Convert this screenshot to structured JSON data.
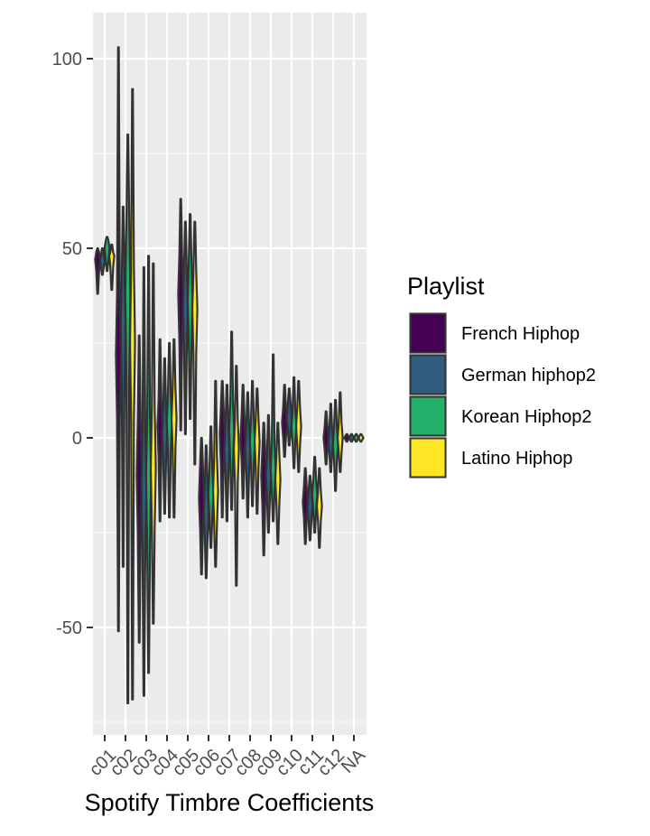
{
  "chart_data": {
    "type": "violin",
    "title": "",
    "xlabel": "Spotify Timbre Coefficients",
    "ylabel": "",
    "categories": [
      "c01",
      "c02",
      "c03",
      "c04",
      "c05",
      "c06",
      "c07",
      "c08",
      "c09",
      "c10",
      "c11",
      "c12",
      "NA"
    ],
    "y_ticks": [
      100,
      50,
      0,
      -50
    ],
    "y_tick_labels": [
      "100",
      "50",
      "0",
      "-50"
    ],
    "ylim": [
      -78,
      112
    ],
    "grid": true,
    "legend": {
      "title": "Playlist",
      "placement": "right"
    },
    "series": [
      {
        "name": "French Hiphop",
        "color": "#440154",
        "stats": [
          {
            "min": 38,
            "q1": 44,
            "median": 47,
            "q3": 49,
            "max": 50
          },
          {
            "min": -51,
            "q1": 5,
            "median": 22,
            "q3": 38,
            "max": 103
          },
          {
            "min": -54,
            "q1": -25,
            "median": -10,
            "q3": 5,
            "max": 27
          },
          {
            "min": -22,
            "q1": -5,
            "median": 3,
            "q3": 10,
            "max": 26
          },
          {
            "min": 2,
            "q1": 26,
            "median": 38,
            "q3": 48,
            "max": 63
          },
          {
            "min": -36,
            "q1": -24,
            "median": -16,
            "q3": -7,
            "max": 0
          },
          {
            "min": -21,
            "q1": -7,
            "median": 1,
            "q3": 8,
            "max": 15
          },
          {
            "min": -16,
            "q1": -6,
            "median": 0,
            "q3": 6,
            "max": 14
          },
          {
            "min": -31,
            "q1": -18,
            "median": -10,
            "q3": -3,
            "max": 4
          },
          {
            "min": -5,
            "q1": 0,
            "median": 4,
            "q3": 8,
            "max": 14
          },
          {
            "min": -28,
            "q1": -21,
            "median": -17,
            "q3": -13,
            "max": -8
          },
          {
            "min": -7,
            "q1": -3,
            "median": 0,
            "q3": 3,
            "max": 7
          },
          {
            "min": -1,
            "q1": -0.5,
            "median": 0,
            "q3": 0.5,
            "max": 1
          }
        ]
      },
      {
        "name": "German hiphop2",
        "color": "#2f5d7d",
        "stats": [
          {
            "min": 43,
            "q1": 45,
            "median": 47,
            "q3": 48,
            "max": 50
          },
          {
            "min": -34,
            "q1": 15,
            "median": 30,
            "q3": 42,
            "max": 61
          },
          {
            "min": -68,
            "q1": -30,
            "median": -14,
            "q3": 2,
            "max": 45
          },
          {
            "min": -20,
            "q1": -6,
            "median": 1,
            "q3": 8,
            "max": 21
          },
          {
            "min": 1,
            "q1": 24,
            "median": 34,
            "q3": 44,
            "max": 57
          },
          {
            "min": -37,
            "q1": -26,
            "median": -20,
            "q3": -12,
            "max": -2
          },
          {
            "min": -22,
            "q1": -10,
            "median": -3,
            "q3": 4,
            "max": 14
          },
          {
            "min": -21,
            "q1": -9,
            "median": -3,
            "q3": 3,
            "max": 12
          },
          {
            "min": -25,
            "q1": -16,
            "median": -10,
            "q3": -4,
            "max": 6
          },
          {
            "min": -2,
            "q1": 2,
            "median": 5,
            "q3": 9,
            "max": 13
          },
          {
            "min": -27,
            "q1": -22,
            "median": -18,
            "q3": -14,
            "max": -10
          },
          {
            "min": -9,
            "q1": -4,
            "median": -1,
            "q3": 2,
            "max": 9
          },
          {
            "min": -1,
            "q1": -0.5,
            "median": 0,
            "q3": 0.5,
            "max": 1
          }
        ]
      },
      {
        "name": "Korean Hiphop2",
        "color": "#22b06a",
        "stats": [
          {
            "min": 44,
            "q1": 47,
            "median": 50,
            "q3": 52,
            "max": 53
          },
          {
            "min": -70,
            "q1": 15,
            "median": 38,
            "q3": 58,
            "max": 80
          },
          {
            "min": -62,
            "q1": -28,
            "median": -10,
            "q3": 5,
            "max": 48
          },
          {
            "min": -21,
            "q1": -4,
            "median": 4,
            "q3": 12,
            "max": 25
          },
          {
            "min": 5,
            "q1": 26,
            "median": 36,
            "q3": 46,
            "max": 59
          },
          {
            "min": -29,
            "q1": -21,
            "median": -15,
            "q3": -8,
            "max": 3
          },
          {
            "min": -19,
            "q1": -6,
            "median": 2,
            "q3": 9,
            "max": 28
          },
          {
            "min": -18,
            "q1": -7,
            "median": -1,
            "q3": 5,
            "max": 15
          },
          {
            "min": -22,
            "q1": -14,
            "median": -8,
            "q3": -2,
            "max": 22
          },
          {
            "min": -8,
            "q1": -1,
            "median": 3,
            "q3": 7,
            "max": 16
          },
          {
            "min": -25,
            "q1": -19,
            "median": -15,
            "q3": -11,
            "max": -5
          },
          {
            "min": -14,
            "q1": -6,
            "median": -2,
            "q3": 3,
            "max": 10
          },
          {
            "min": -1,
            "q1": -0.5,
            "median": 0,
            "q3": 0.5,
            "max": 1
          }
        ]
      },
      {
        "name": "Latino Hiphop",
        "color": "#fde725",
        "stats": [
          {
            "min": 39,
            "q1": 45,
            "median": 48,
            "q3": 49,
            "max": 51
          },
          {
            "min": -69,
            "q1": 5,
            "median": 25,
            "q3": 45,
            "max": 92
          },
          {
            "min": -49,
            "q1": -24,
            "median": -8,
            "q3": 8,
            "max": 46
          },
          {
            "min": -21,
            "q1": -3,
            "median": 5,
            "q3": 13,
            "max": 26
          },
          {
            "min": -7,
            "q1": 22,
            "median": 34,
            "q3": 44,
            "max": 57
          },
          {
            "min": -34,
            "q1": -23,
            "median": -14,
            "q3": -5,
            "max": 15
          },
          {
            "min": -39,
            "q1": -12,
            "median": -3,
            "q3": 5,
            "max": 19
          },
          {
            "min": -20,
            "q1": -8,
            "median": -1,
            "q3": 5,
            "max": 13
          },
          {
            "min": -28,
            "q1": -18,
            "median": -11,
            "q3": -4,
            "max": 4
          },
          {
            "min": -9,
            "q1": -2,
            "median": 3,
            "q3": 8,
            "max": 15
          },
          {
            "min": -29,
            "q1": -22,
            "median": -18,
            "q3": -14,
            "max": -8
          },
          {
            "min": -9,
            "q1": -4,
            "median": 0,
            "q3": 4,
            "max": 12
          },
          {
            "min": -1,
            "q1": -0.5,
            "median": 0,
            "q3": 0.5,
            "max": 1
          }
        ]
      }
    ]
  }
}
